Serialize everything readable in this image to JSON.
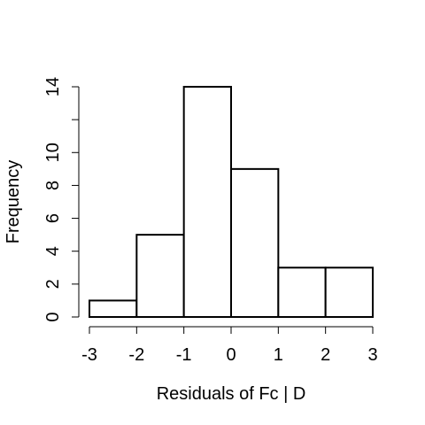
{
  "chart_data": {
    "type": "bar",
    "subtype": "histogram",
    "bins": [
      {
        "x0": -3,
        "x1": -2,
        "count": 1
      },
      {
        "x0": -2,
        "x1": -1,
        "count": 5
      },
      {
        "x0": -1,
        "x1": 0,
        "count": 14
      },
      {
        "x0": 0,
        "x1": 1,
        "count": 9
      },
      {
        "x0": 1,
        "x1": 2,
        "count": 3
      },
      {
        "x0": 2,
        "x1": 3,
        "count": 3
      }
    ],
    "xlabel": "Residuals of Fc | D",
    "ylabel": "Frequency",
    "xlim": [
      -3,
      3
    ],
    "ylim": [
      0,
      14
    ],
    "x_ticks": [
      "-3",
      "-2",
      "-1",
      "0",
      "1",
      "2",
      "3"
    ],
    "y_ticks_labeled": [
      "0",
      "2",
      "4",
      "6",
      "8",
      "10",
      "14"
    ],
    "y_ticks_all": [
      0,
      2,
      4,
      6,
      8,
      10,
      12,
      14
    ],
    "grid": false,
    "bar_fill": "#ffffff",
    "bar_stroke": "#000000"
  }
}
